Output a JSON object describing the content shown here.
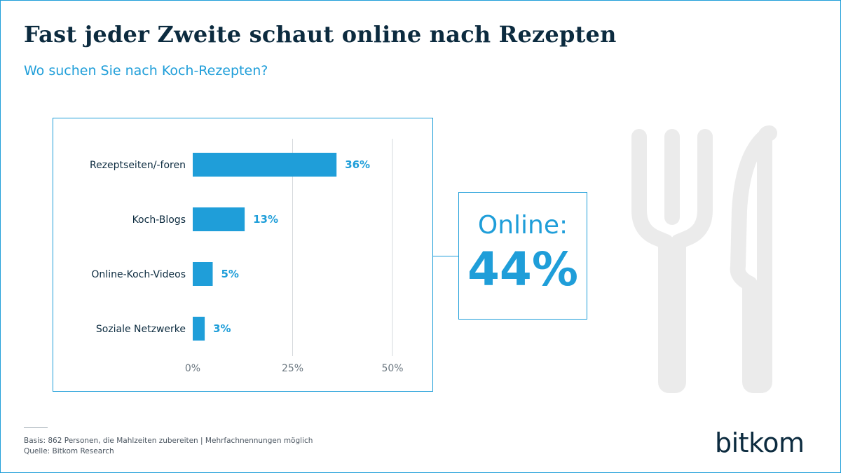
{
  "title": "Fast jeder Zweite schaut online nach Rezepten",
  "subtitle": "Wo suchen Sie nach Koch-Rezepten?",
  "chart_data": {
    "type": "bar",
    "orientation": "horizontal",
    "categories": [
      "Rezeptseiten/-foren",
      "Koch-Blogs",
      "Online-Koch-Videos",
      "Soziale Netzwerke"
    ],
    "values": [
      36,
      13,
      5,
      3
    ],
    "value_labels": [
      "36%",
      "13%",
      "5%",
      "3%"
    ],
    "xlim": [
      0,
      50
    ],
    "ticks": [
      0,
      25,
      50
    ],
    "tick_labels": [
      "0%",
      "25%",
      "50%"
    ],
    "grid": true,
    "bar_color": "#1f9ed9"
  },
  "callout": {
    "label": "Online:",
    "value": "44%"
  },
  "footer": {
    "basis": "Basis: 862 Personen, die Mahlzeiten zubereiten | Mehrfachnennungen möglich",
    "source": "Quelle: Bitkom Research"
  },
  "brand": {
    "logo_text": "bitkom",
    "accent": "#1f9ed9",
    "dark": "#0c2b3f",
    "icon": "fork-knife-icon"
  }
}
